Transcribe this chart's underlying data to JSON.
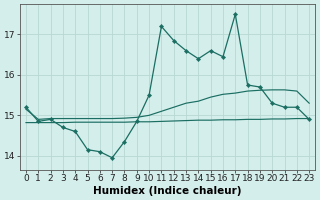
{
  "title": "",
  "xlabel": "Humidex (Indice chaleur)",
  "ylabel": "",
  "background_color": "#d4eeeb",
  "grid_color": "#b8d8d4",
  "line_color": "#1a6e62",
  "x": [
    0,
    1,
    2,
    3,
    4,
    5,
    6,
    7,
    8,
    9,
    10,
    11,
    12,
    13,
    14,
    15,
    16,
    17,
    18,
    19,
    20,
    21,
    22,
    23
  ],
  "y_main": [
    15.2,
    14.85,
    14.9,
    14.7,
    14.6,
    14.15,
    14.1,
    13.95,
    14.35,
    14.85,
    15.5,
    17.2,
    16.85,
    16.6,
    16.4,
    16.6,
    16.45,
    17.5,
    15.75,
    15.7,
    15.3,
    15.2,
    15.2,
    14.9
  ],
  "y_upper": [
    15.15,
    14.9,
    14.92,
    14.92,
    14.92,
    14.92,
    14.92,
    14.92,
    14.93,
    14.95,
    15.0,
    15.1,
    15.2,
    15.3,
    15.35,
    15.45,
    15.52,
    15.55,
    15.6,
    15.62,
    15.63,
    15.63,
    15.6,
    15.3
  ],
  "y_lower": [
    14.82,
    14.82,
    14.82,
    14.82,
    14.83,
    14.83,
    14.83,
    14.83,
    14.83,
    14.84,
    14.84,
    14.85,
    14.86,
    14.87,
    14.88,
    14.88,
    14.89,
    14.89,
    14.9,
    14.9,
    14.91,
    14.91,
    14.92,
    14.92
  ],
  "ylim": [
    13.65,
    17.75
  ],
  "yticks": [
    14,
    15,
    16,
    17
  ],
  "xticks": [
    0,
    1,
    2,
    3,
    4,
    5,
    6,
    7,
    8,
    9,
    10,
    11,
    12,
    13,
    14,
    15,
    16,
    17,
    18,
    19,
    20,
    21,
    22,
    23
  ],
  "tick_fontsize": 6.5,
  "label_fontsize": 7.5
}
